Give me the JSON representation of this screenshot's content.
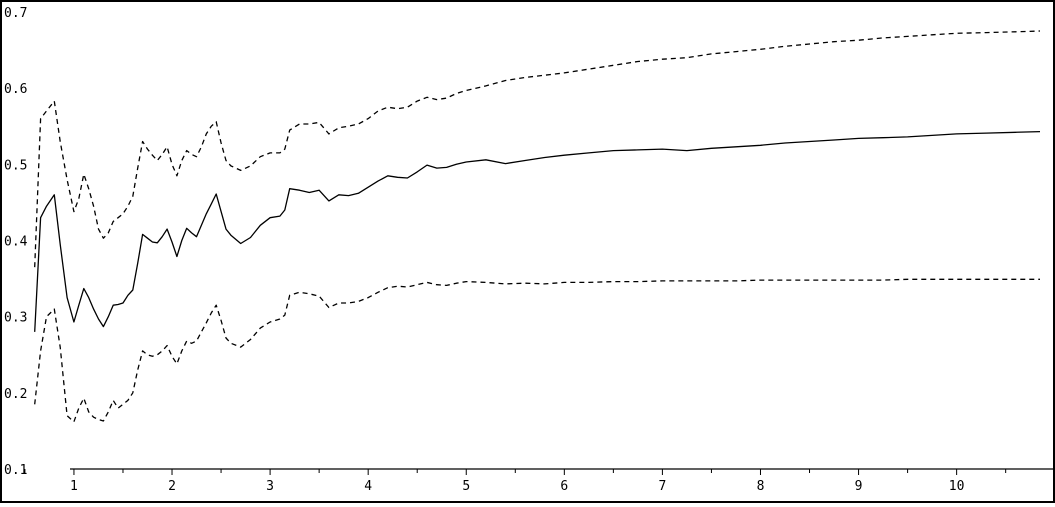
{
  "chart_data": {
    "type": "line",
    "title": "",
    "xlabel": "",
    "ylabel": "",
    "xlim": [
      0.45,
      10.85
    ],
    "ylim": [
      0.1,
      0.7
    ],
    "x_ticks": [
      {
        "value": 1,
        "label": "1"
      },
      {
        "value": 2,
        "label": "2"
      },
      {
        "value": 3,
        "label": "3"
      },
      {
        "value": 4,
        "label": "4"
      },
      {
        "value": 5,
        "label": "5"
      },
      {
        "value": 6,
        "label": "6"
      },
      {
        "value": 7,
        "label": "7"
      },
      {
        "value": 8,
        "label": "8"
      },
      {
        "value": 9,
        "label": "9"
      },
      {
        "value": 10,
        "label": "10"
      }
    ],
    "y_ticks": [
      {
        "value": 0.1,
        "label": "0.1"
      },
      {
        "value": 0.2,
        "label": "0.2"
      },
      {
        "value": 0.3,
        "label": "0.3"
      },
      {
        "value": 0.4,
        "label": "0.4"
      },
      {
        "value": 0.5,
        "label": "0.5"
      },
      {
        "value": 0.6,
        "label": "0.6"
      },
      {
        "value": 0.7,
        "label": "0.7"
      }
    ],
    "grid": false,
    "legend": "none",
    "x": [
      0.6,
      0.66,
      0.72,
      0.8,
      0.86,
      0.93,
      1.0,
      1.05,
      1.1,
      1.15,
      1.2,
      1.25,
      1.3,
      1.35,
      1.4,
      1.45,
      1.5,
      1.55,
      1.6,
      1.65,
      1.7,
      1.75,
      1.8,
      1.85,
      1.9,
      1.95,
      2.0,
      2.05,
      2.1,
      2.15,
      2.2,
      2.25,
      2.3,
      2.35,
      2.4,
      2.45,
      2.5,
      2.55,
      2.6,
      2.7,
      2.8,
      2.9,
      3.0,
      3.1,
      3.15,
      3.2,
      3.3,
      3.4,
      3.5,
      3.6,
      3.7,
      3.8,
      3.9,
      4.0,
      4.1,
      4.2,
      4.3,
      4.4,
      4.5,
      4.6,
      4.7,
      4.8,
      4.9,
      5.0,
      5.2,
      5.4,
      5.6,
      5.8,
      6.0,
      6.25,
      6.5,
      6.75,
      7.0,
      7.25,
      7.5,
      7.75,
      8.0,
      8.25,
      8.5,
      8.75,
      9.0,
      9.25,
      9.5,
      9.75,
      10.0,
      10.3,
      10.6,
      10.85
    ],
    "series": [
      {
        "style": "solid",
        "color": "#000000",
        "values": [
          0.28,
          0.43,
          0.445,
          0.46,
          0.395,
          0.325,
          0.293,
          0.315,
          0.337,
          0.325,
          0.31,
          0.297,
          0.287,
          0.3,
          0.315,
          0.316,
          0.318,
          0.328,
          0.335,
          0.37,
          0.408,
          0.403,
          0.398,
          0.397,
          0.405,
          0.415,
          0.398,
          0.379,
          0.4,
          0.416,
          0.41,
          0.405,
          0.42,
          0.435,
          0.448,
          0.461,
          0.438,
          0.415,
          0.407,
          0.396,
          0.404,
          0.42,
          0.43,
          0.432,
          0.44,
          0.468,
          0.466,
          0.463,
          0.466,
          0.452,
          0.46,
          0.459,
          0.462,
          0.47,
          0.478,
          0.485,
          0.483,
          0.482,
          0.49,
          0.499,
          0.495,
          0.496,
          0.5,
          0.503,
          0.506,
          0.501,
          0.505,
          0.509,
          0.512,
          0.515,
          0.518,
          0.519,
          0.52,
          0.518,
          0.521,
          0.523,
          0.525,
          0.528,
          0.53,
          0.532,
          0.534,
          0.535,
          0.536,
          0.538,
          0.54,
          0.541,
          0.542,
          0.543
        ]
      },
      {
        "style": "dashed",
        "color": "#000000",
        "values": [
          0.365,
          0.56,
          0.57,
          0.583,
          0.53,
          0.48,
          0.438,
          0.455,
          0.487,
          0.468,
          0.445,
          0.415,
          0.403,
          0.41,
          0.425,
          0.43,
          0.435,
          0.445,
          0.458,
          0.495,
          0.53,
          0.52,
          0.512,
          0.505,
          0.513,
          0.523,
          0.5,
          0.485,
          0.505,
          0.518,
          0.513,
          0.51,
          0.523,
          0.54,
          0.55,
          0.556,
          0.528,
          0.505,
          0.498,
          0.492,
          0.498,
          0.51,
          0.515,
          0.515,
          0.52,
          0.545,
          0.553,
          0.553,
          0.555,
          0.54,
          0.548,
          0.55,
          0.553,
          0.56,
          0.57,
          0.575,
          0.573,
          0.575,
          0.583,
          0.588,
          0.585,
          0.587,
          0.593,
          0.597,
          0.603,
          0.61,
          0.614,
          0.617,
          0.62,
          0.625,
          0.63,
          0.635,
          0.638,
          0.64,
          0.645,
          0.648,
          0.651,
          0.655,
          0.658,
          0.661,
          0.663,
          0.666,
          0.668,
          0.67,
          0.672,
          0.673,
          0.674,
          0.675
        ]
      },
      {
        "style": "dashed",
        "color": "#000000",
        "values": [
          0.185,
          0.255,
          0.3,
          0.31,
          0.26,
          0.17,
          0.162,
          0.18,
          0.193,
          0.175,
          0.168,
          0.165,
          0.163,
          0.175,
          0.19,
          0.18,
          0.185,
          0.19,
          0.2,
          0.23,
          0.255,
          0.25,
          0.248,
          0.25,
          0.255,
          0.262,
          0.248,
          0.238,
          0.255,
          0.268,
          0.265,
          0.268,
          0.28,
          0.292,
          0.305,
          0.315,
          0.295,
          0.272,
          0.265,
          0.26,
          0.27,
          0.285,
          0.293,
          0.297,
          0.302,
          0.328,
          0.332,
          0.33,
          0.327,
          0.312,
          0.318,
          0.318,
          0.32,
          0.325,
          0.332,
          0.338,
          0.34,
          0.339,
          0.342,
          0.345,
          0.342,
          0.341,
          0.344,
          0.346,
          0.345,
          0.343,
          0.344,
          0.343,
          0.345,
          0.345,
          0.346,
          0.346,
          0.347,
          0.347,
          0.347,
          0.347,
          0.348,
          0.348,
          0.348,
          0.348,
          0.348,
          0.348,
          0.349,
          0.349,
          0.349,
          0.349,
          0.349,
          0.349
        ]
      }
    ]
  }
}
